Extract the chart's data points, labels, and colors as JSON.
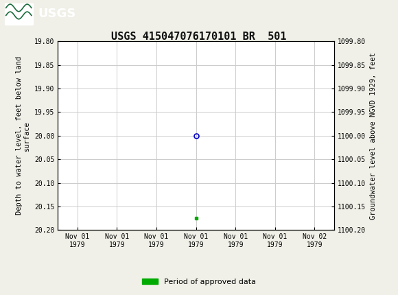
{
  "title": "USGS 415047076170101 BR  501",
  "header_color": "#1a6b3c",
  "bg_color": "#f0f0e8",
  "plot_bg": "#ffffff",
  "ylabel_left": "Depth to water level, feet below land\nsurface",
  "ylabel_right": "Groundwater level above NGVD 1929, feet",
  "ylim_left": [
    19.8,
    20.2
  ],
  "ylim_right": [
    1099.8,
    1100.2
  ],
  "yticks_left": [
    19.8,
    19.85,
    19.9,
    19.95,
    20.0,
    20.05,
    20.1,
    20.15,
    20.2
  ],
  "yticks_right": [
    1099.8,
    1099.85,
    1099.9,
    1099.95,
    1100.0,
    1100.05,
    1100.1,
    1100.15,
    1100.2
  ],
  "data_point_x": 3.5,
  "data_point_y": 20.0,
  "data_marker_x": 3.5,
  "data_marker_y": 20.175,
  "data_point_color": "#0000cc",
  "data_marker_color": "#00aa00",
  "xtick_labels": [
    "Nov 01\n1979",
    "Nov 01\n1979",
    "Nov 01\n1979",
    "Nov 01\n1979",
    "Nov 01\n1979",
    "Nov 01\n1979",
    "Nov 02\n1979"
  ],
  "xtick_positions": [
    0.5,
    1.5,
    2.5,
    3.5,
    4.5,
    5.5,
    6.5
  ],
  "xlim": [
    0,
    7
  ],
  "legend_label": "Period of approved data",
  "legend_color": "#00aa00",
  "grid_color": "#cccccc",
  "title_fontsize": 11,
  "axis_fontsize": 7.5,
  "tick_fontsize": 7
}
